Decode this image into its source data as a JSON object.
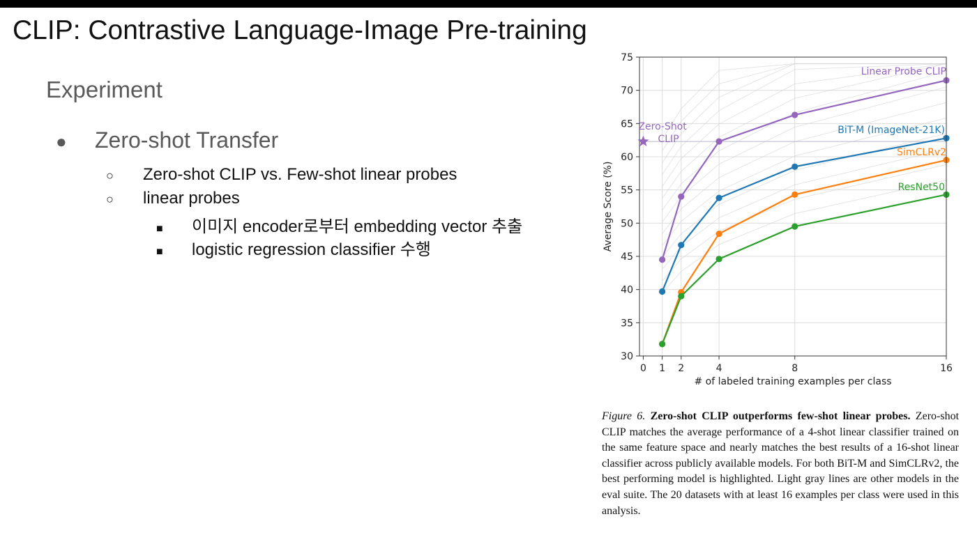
{
  "slide": {
    "title": "CLIP: Contrastive Language-Image Pre-training",
    "section": "Experiment",
    "bullets": {
      "level1": "Zero-shot Transfer",
      "level2": [
        "Zero-shot CLIP vs. Few-shot linear probes",
        "linear probes"
      ],
      "level3": [
        "이미지 encoder로부터 embedding vector 추출",
        "logistic regression classifier 수행"
      ]
    },
    "markers": {
      "level1": "●",
      "level2": "○",
      "level3": "■"
    }
  },
  "figure": {
    "label": "Figure 6.",
    "heading": "Zero-shot CLIP outperforms few-shot linear probes.",
    "body": "Zero-shot CLIP matches the average performance of a 4-shot linear classifier trained on the same feature space and nearly matches the best results of a 16-shot linear classifier across publicly available models. For both BiT-M and SimCLRv2, the best performing model is highlighted. Light gray lines are other models in the eval suite. The 20 datasets with at least 16 examples per class were used in this analysis."
  },
  "chart_data": {
    "type": "line",
    "xlabel": "# of labeled training examples per class",
    "ylabel": "Average Score (%)",
    "xticks": [
      0,
      1,
      2,
      4,
      8,
      16
    ],
    "xlim": [
      -0.2,
      16
    ],
    "yticks": [
      30,
      35,
      40,
      45,
      50,
      55,
      60,
      65,
      70,
      75
    ],
    "ylim": [
      30,
      75
    ],
    "grid": true,
    "x": [
      1,
      2,
      4,
      8,
      16
    ],
    "series": [
      {
        "name": "Linear Probe CLIP",
        "color": "#9467bd",
        "values": [
          44.5,
          54.0,
          62.3,
          66.3,
          71.5
        ]
      },
      {
        "name": "BiT-M (ImageNet-21K)",
        "color": "#1f77b4",
        "values": [
          39.7,
          46.7,
          53.8,
          58.5,
          62.8
        ]
      },
      {
        "name": "SimCLRv2",
        "color": "#ff7f0e",
        "values": [
          31.8,
          39.6,
          48.4,
          54.3,
          59.5
        ]
      },
      {
        "name": "ResNet50",
        "color": "#2ca02c",
        "values": [
          31.8,
          39.0,
          44.6,
          49.5,
          54.3
        ]
      }
    ],
    "zero_shot": {
      "label_line1": "Zero-Shot",
      "label_line2": "CLIP",
      "x": 0,
      "y": 62.3,
      "color": "#9467bd"
    }
  }
}
